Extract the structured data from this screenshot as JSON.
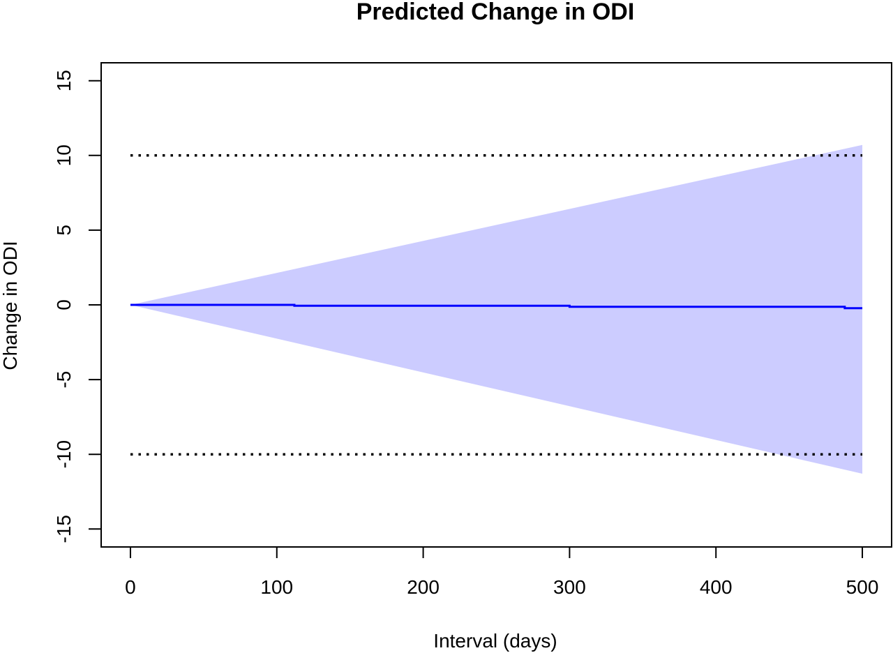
{
  "chart_data": {
    "type": "line",
    "title": "Predicted Change in ODI",
    "xlabel": "Interval (days)",
    "ylabel": "Change in ODI",
    "xlim": [
      -20,
      520
    ],
    "ylim": [
      -16.2,
      16.2
    ],
    "xticks": [
      0,
      100,
      200,
      300,
      400,
      500
    ],
    "yticks": [
      -15,
      -10,
      -5,
      0,
      5,
      10,
      15
    ],
    "xtick_labels": [
      "0",
      "100",
      "200",
      "300",
      "400",
      "500"
    ],
    "ytick_labels": [
      "-15",
      "-10",
      "-5",
      "0",
      "5",
      "10",
      "15"
    ],
    "grid": false,
    "series": [
      {
        "kind": "band",
        "color": "#ccccff",
        "x": [
          0,
          500
        ],
        "upper": [
          0,
          10.7
        ],
        "lower": [
          0,
          -11.3
        ]
      },
      {
        "kind": "step-line",
        "color": "#0000ff",
        "x": [
          0,
          112,
          112,
          300,
          300,
          488,
          488,
          500
        ],
        "y": [
          0,
          0,
          -0.06,
          -0.06,
          -0.13,
          -0.13,
          -0.22,
          -0.22
        ]
      },
      {
        "kind": "reference-line",
        "style": "dotted",
        "color": "#000000",
        "x": [
          0,
          500
        ],
        "y": [
          10,
          10
        ]
      },
      {
        "kind": "reference-line",
        "style": "dotted",
        "color": "#000000",
        "x": [
          0,
          500
        ],
        "y": [
          -10,
          -10
        ]
      }
    ]
  }
}
